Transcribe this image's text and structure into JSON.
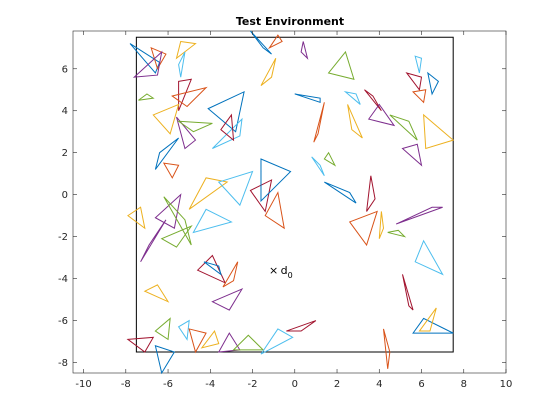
{
  "chart_data": {
    "type": "scatter",
    "title": "Test Environment",
    "xlabel": "",
    "ylabel": "",
    "xlim": [
      -10.5,
      10
    ],
    "ylim": [
      -8.5,
      7.8
    ],
    "xticks": [
      -10,
      -8,
      -6,
      -4,
      -2,
      0,
      2,
      4,
      6,
      8,
      10
    ],
    "yticks": [
      -8,
      -6,
      -4,
      -2,
      0,
      2,
      4,
      6
    ],
    "grid": false,
    "legend": "none",
    "boundary": [
      [
        -7.5,
        -7.5
      ],
      [
        7.5,
        -7.5
      ],
      [
        7.5,
        7.5
      ],
      [
        -7.5,
        7.5
      ]
    ],
    "marker": {
      "x": -1,
      "y": -3.6,
      "symbol": "×",
      "label": "d",
      "subscript": "0"
    },
    "colors": [
      "#0072bd",
      "#d95319",
      "#edb120",
      "#7e2f8e",
      "#77ac30",
      "#4dbeee",
      "#a2142f"
    ],
    "triangles": [
      [
        [
          -7.8,
          7.2
        ],
        [
          -6.4,
          6.3
        ],
        [
          -6.6,
          5.8
        ]
      ],
      [
        [
          -6.8,
          7.0
        ],
        [
          -6.1,
          6.7
        ],
        [
          -6.5,
          6.0
        ]
      ],
      [
        [
          -5.4,
          7.3
        ],
        [
          -4.7,
          7.2
        ],
        [
          -5.6,
          6.5
        ]
      ],
      [
        [
          -7.6,
          5.6
        ],
        [
          -6.3,
          6.8
        ],
        [
          -6.5,
          5.7
        ]
      ],
      [
        [
          -7.4,
          4.5
        ],
        [
          -7.0,
          4.8
        ],
        [
          -6.7,
          4.6
        ]
      ],
      [
        [
          -5.5,
          6.2
        ],
        [
          -5.2,
          6.8
        ],
        [
          -5.4,
          5.6
        ]
      ],
      [
        [
          -5.5,
          5.4
        ],
        [
          -4.9,
          5.5
        ],
        [
          -5.5,
          4.0
        ]
      ],
      [
        [
          -4.1,
          4.1
        ],
        [
          -2.4,
          4.9
        ],
        [
          -2.8,
          3.0
        ]
      ],
      [
        [
          -5.8,
          4.7
        ],
        [
          -4.2,
          5.1
        ],
        [
          -5.1,
          4.2
        ]
      ],
      [
        [
          -6.7,
          3.8
        ],
        [
          -5.5,
          4.3
        ],
        [
          -5.9,
          2.9
        ]
      ],
      [
        [
          -5.6,
          3.7
        ],
        [
          -4.7,
          2.6
        ],
        [
          -5.2,
          2.2
        ]
      ],
      [
        [
          -5.5,
          3.5
        ],
        [
          -3.9,
          3.4
        ],
        [
          -4.8,
          3.0
        ]
      ],
      [
        [
          -3.9,
          2.2
        ],
        [
          -2.5,
          3.6
        ],
        [
          -2.6,
          2.8
        ]
      ],
      [
        [
          -3.5,
          3.1
        ],
        [
          -3.0,
          3.8
        ],
        [
          -2.9,
          2.6
        ]
      ],
      [
        [
          -6.4,
          2.0
        ],
        [
          -5.5,
          2.7
        ],
        [
          -6.6,
          1.2
        ]
      ],
      [
        [
          -6.2,
          1.5
        ],
        [
          -5.8,
          0.8
        ],
        [
          -5.5,
          1.4
        ]
      ],
      [
        [
          -5.0,
          -0.7
        ],
        [
          -4.2,
          0.8
        ],
        [
          -3.2,
          0.6
        ]
      ],
      [
        [
          -5.7,
          -1.6
        ],
        [
          -5.4,
          0.0
        ],
        [
          -6.6,
          -1.1
        ]
      ],
      [
        [
          -6.2,
          -0.1
        ],
        [
          -5.2,
          -1.2
        ],
        [
          -4.9,
          -2.4
        ]
      ],
      [
        [
          -3.6,
          0.6
        ],
        [
          -2.0,
          1.1
        ],
        [
          -2.6,
          -0.5
        ]
      ],
      [
        [
          -2.1,
          0.2
        ],
        [
          -1.4,
          -0.8
        ],
        [
          -1.1,
          0.7
        ]
      ],
      [
        [
          -1.6,
          1.7
        ],
        [
          -0.2,
          1.1
        ],
        [
          -1.6,
          -0.3
        ]
      ],
      [
        [
          -1.4,
          -1.0
        ],
        [
          -0.8,
          0.1
        ],
        [
          -0.5,
          -1.6
        ]
      ],
      [
        [
          -7.9,
          -1.0
        ],
        [
          -7.3,
          -0.6
        ],
        [
          -7.1,
          -1.6
        ]
      ],
      [
        [
          -7.3,
          -3.2
        ],
        [
          -6.1,
          -1.2
        ],
        [
          -6.9,
          -2.4
        ]
      ],
      [
        [
          -6.3,
          -2.1
        ],
        [
          -5.6,
          -2.5
        ],
        [
          -4.9,
          -1.5
        ]
      ],
      [
        [
          -4.8,
          -1.8
        ],
        [
          -4.2,
          -0.7
        ],
        [
          -3.0,
          -1.3
        ]
      ],
      [
        [
          -4.6,
          -3.6
        ],
        [
          -3.3,
          -4.2
        ],
        [
          -3.9,
          -2.9
        ]
      ],
      [
        [
          -4.3,
          -3.2
        ],
        [
          -3.6,
          -3.4
        ],
        [
          -3.5,
          -3.8
        ]
      ],
      [
        [
          -3.4,
          -4.4
        ],
        [
          -2.7,
          -3.2
        ],
        [
          -2.9,
          -4.1
        ]
      ],
      [
        [
          -6.5,
          -4.3
        ],
        [
          -7.1,
          -4.6
        ],
        [
          -6.0,
          -5.1
        ]
      ],
      [
        [
          -3.9,
          -5.1
        ],
        [
          -2.5,
          -4.5
        ],
        [
          -3.1,
          -5.5
        ]
      ],
      [
        [
          -6.6,
          -6.5
        ],
        [
          -5.9,
          -5.9
        ],
        [
          -6.0,
          -6.9
        ]
      ],
      [
        [
          -5.0,
          -6.0
        ],
        [
          -5.5,
          -6.3
        ],
        [
          -5.1,
          -6.9
        ]
      ],
      [
        [
          -7.9,
          -6.9
        ],
        [
          -6.7,
          -6.8
        ],
        [
          -7.1,
          -7.5
        ]
      ],
      [
        [
          -6.6,
          -7.2
        ],
        [
          -5.7,
          -7.5
        ],
        [
          -6.3,
          -8.5
        ]
      ],
      [
        [
          -5.0,
          -6.4
        ],
        [
          -4.2,
          -6.6
        ],
        [
          -4.7,
          -7.5
        ]
      ],
      [
        [
          -4.4,
          -7.3
        ],
        [
          -3.8,
          -6.5
        ],
        [
          -3.6,
          -7.1
        ]
      ],
      [
        [
          -3.6,
          -7.5
        ],
        [
          -2.6,
          -7.4
        ],
        [
          -3.1,
          -6.6
        ]
      ],
      [
        [
          -2.2,
          -6.7
        ],
        [
          -1.5,
          -7.4
        ],
        [
          -2.9,
          -7.4
        ]
      ],
      [
        [
          -1.6,
          -7.6
        ],
        [
          -0.8,
          -6.4
        ],
        [
          -0.1,
          -6.8
        ]
      ],
      [
        [
          -0.4,
          -6.5
        ],
        [
          0.3,
          -6.5
        ],
        [
          1.0,
          -6.0
        ]
      ],
      [
        [
          -2.1,
          7.8
        ],
        [
          -1.5,
          7.0
        ],
        [
          -1.1,
          6.7
        ]
      ],
      [
        [
          -1.2,
          7.0
        ],
        [
          -0.8,
          7.6
        ],
        [
          -0.6,
          7.3
        ]
      ],
      [
        [
          -1.6,
          5.2
        ],
        [
          -0.9,
          6.5
        ],
        [
          -1.1,
          5.6
        ]
      ],
      [
        [
          0.6,
          6.5
        ],
        [
          0.4,
          7.3
        ],
        [
          0.3,
          6.8
        ]
      ],
      [
        [
          1.6,
          5.8
        ],
        [
          2.8,
          5.5
        ],
        [
          2.4,
          6.8
        ]
      ],
      [
        [
          2.4,
          4.9
        ],
        [
          2.9,
          4.8
        ],
        [
          3.1,
          4.3
        ]
      ],
      [
        [
          3.3,
          5.0
        ],
        [
          4.1,
          4.0
        ],
        [
          3.7,
          4.7
        ]
      ],
      [
        [
          0.0,
          4.8
        ],
        [
          1.2,
          4.6
        ],
        [
          1.2,
          4.4
        ]
      ],
      [
        [
          1.4,
          4.4
        ],
        [
          0.9,
          2.5
        ],
        [
          1.1,
          2.9
        ]
      ],
      [
        [
          2.5,
          4.3
        ],
        [
          2.7,
          3.1
        ],
        [
          3.2,
          2.7
        ]
      ],
      [
        [
          3.5,
          3.6
        ],
        [
          4.0,
          4.3
        ],
        [
          4.7,
          3.3
        ]
      ],
      [
        [
          4.5,
          3.8
        ],
        [
          5.4,
          3.5
        ],
        [
          5.8,
          2.6
        ]
      ],
      [
        [
          5.7,
          6.6
        ],
        [
          6.0,
          6.5
        ],
        [
          5.9,
          5.8
        ]
      ],
      [
        [
          5.3,
          5.8
        ],
        [
          6.0,
          5.6
        ],
        [
          5.9,
          5.0
        ]
      ],
      [
        [
          6.3,
          5.8
        ],
        [
          6.8,
          5.4
        ],
        [
          6.5,
          4.8
        ]
      ],
      [
        [
          5.6,
          4.9
        ],
        [
          6.1,
          4.4
        ],
        [
          6.2,
          5.0
        ]
      ],
      [
        [
          6.1,
          3.8
        ],
        [
          7.5,
          2.6
        ],
        [
          6.2,
          2.2
        ]
      ],
      [
        [
          5.1,
          2.2
        ],
        [
          5.8,
          2.4
        ],
        [
          6.0,
          1.4
        ]
      ],
      [
        [
          1.4,
          1.7
        ],
        [
          1.9,
          1.4
        ],
        [
          1.6,
          2.0
        ]
      ],
      [
        [
          0.8,
          1.8
        ],
        [
          1.2,
          1.4
        ],
        [
          1.4,
          0.9
        ]
      ],
      [
        [
          3.6,
          0.9
        ],
        [
          3.4,
          -0.8
        ],
        [
          3.8,
          -0.2
        ]
      ],
      [
        [
          1.4,
          0.6
        ],
        [
          2.6,
          0.1
        ],
        [
          2.9,
          -0.4
        ]
      ],
      [
        [
          2.6,
          -1.3
        ],
        [
          3.9,
          -0.8
        ],
        [
          3.4,
          -2.4
        ]
      ],
      [
        [
          4.1,
          -0.8
        ],
        [
          4.2,
          -1.6
        ],
        [
          4.0,
          -2.1
        ]
      ],
      [
        [
          4.8,
          -1.4
        ],
        [
          6.5,
          -0.6
        ],
        [
          7.0,
          -0.6
        ]
      ],
      [
        [
          4.4,
          -1.8
        ],
        [
          4.9,
          -1.7
        ],
        [
          5.2,
          -2.0
        ]
      ],
      [
        [
          6.1,
          -2.2
        ],
        [
          7.0,
          -3.8
        ],
        [
          5.7,
          -3.2
        ]
      ],
      [
        [
          5.1,
          -3.8
        ],
        [
          5.4,
          -5.3
        ],
        [
          5.6,
          -5.5
        ]
      ],
      [
        [
          5.6,
          -6.6
        ],
        [
          6.1,
          -5.9
        ],
        [
          7.5,
          -6.6
        ]
      ],
      [
        [
          4.2,
          -6.4
        ],
        [
          4.4,
          -8.3
        ],
        [
          4.5,
          -7.5
        ]
      ],
      [
        [
          5.9,
          -6.5
        ],
        [
          6.7,
          -5.4
        ],
        [
          6.4,
          -6.5
        ]
      ]
    ]
  }
}
